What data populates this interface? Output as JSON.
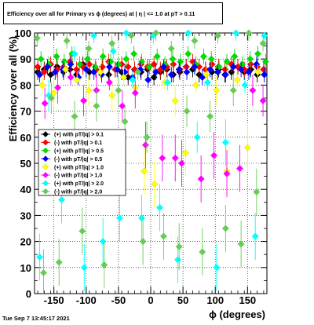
{
  "title": "Efficiency over all for Primary vs ϕ (degrees) at |  η | <= 1.0 at pT > 0.11",
  "timestamp": "Tue Sep  7 13:45:17 2021",
  "chart_data": {
    "type": "scatter",
    "xlabel": "ϕ (degrees)",
    "ylabel": "Efficiency over all (%)",
    "xlim": [
      -180,
      180
    ],
    "ylim": [
      0,
      100
    ],
    "xticks": [
      -150,
      -100,
      -50,
      0,
      50,
      100,
      150
    ],
    "yticks": [
      0,
      10,
      20,
      30,
      40,
      50,
      60,
      70,
      80,
      90,
      100
    ],
    "grid": true,
    "legend_position": "middle-left",
    "series": [
      {
        "name": "(+) with pT/|q| > 0.1",
        "color": "#000000",
        "x": [
          -175,
          -165,
          -155,
          -145,
          -135,
          -125,
          -115,
          -105,
          -95,
          -85,
          -75,
          -65,
          -55,
          -45,
          -35,
          -25,
          -15,
          -5,
          5,
          15,
          25,
          35,
          45,
          55,
          65,
          75,
          85,
          95,
          105,
          115,
          125,
          135,
          145,
          155,
          165,
          175
        ],
        "y": [
          85,
          86,
          84,
          87,
          85,
          86,
          84,
          88,
          85,
          86,
          87,
          84,
          86,
          85,
          83,
          86,
          85,
          86,
          83,
          85,
          86,
          84,
          85,
          87,
          86,
          84,
          86,
          85,
          86,
          84,
          85,
          87,
          85,
          86,
          84,
          86
        ]
      },
      {
        "name": "(-) with pT/|q| > 0.1",
        "color": "#ff0000",
        "x": [
          -175,
          -165,
          -155,
          -145,
          -135,
          -125,
          -115,
          -105,
          -95,
          -85,
          -75,
          -65,
          -55,
          -45,
          -35,
          -25,
          -15,
          -5,
          5,
          15,
          25,
          35,
          45,
          55,
          65,
          75,
          85,
          95,
          105,
          115,
          125,
          135,
          145,
          155,
          165,
          175
        ],
        "y": [
          87,
          85,
          88,
          86,
          87,
          89,
          86,
          87,
          88,
          86,
          87,
          89,
          86,
          88,
          87,
          86,
          88,
          87,
          88,
          86,
          87,
          88,
          86,
          87,
          89,
          87,
          86,
          88,
          87,
          86,
          88,
          87,
          86,
          88,
          87,
          86
        ]
      },
      {
        "name": "(+) with pT/|q| > 0.5",
        "color": "#00dd00",
        "x": [
          -170,
          -158,
          -146,
          -134,
          -122,
          -110,
          -98,
          -86,
          -74,
          -62,
          -50,
          -38,
          -26,
          -14,
          -2,
          10,
          22,
          34,
          46,
          58,
          70,
          82,
          94,
          106,
          118,
          130,
          142,
          154,
          166,
          178
        ],
        "y": [
          90,
          88,
          91,
          89,
          92,
          88,
          90,
          87,
          91,
          89,
          88,
          90,
          92,
          89,
          87,
          91,
          88,
          90,
          89,
          92,
          88,
          91,
          90,
          87,
          89,
          91,
          88,
          90,
          92,
          89
        ]
      },
      {
        "name": "(-) with pT/|q| > 0.5",
        "color": "#0000ff",
        "x": [
          -172,
          -160,
          -148,
          -136,
          -124,
          -112,
          -100,
          -88,
          -76,
          -64,
          -52,
          -40,
          -28,
          -16,
          -4,
          8,
          20,
          32,
          44,
          56,
          68,
          80,
          92,
          104,
          116,
          128,
          140,
          152,
          164,
          176
        ],
        "y": [
          84,
          87,
          85,
          86,
          88,
          83,
          86,
          85,
          84,
          87,
          86,
          85,
          83,
          86,
          82,
          85,
          87,
          84,
          86,
          85,
          87,
          83,
          86,
          85,
          84,
          87,
          86,
          85,
          88,
          84
        ]
      },
      {
        "name": "(+) with pT/|q| > 1.0",
        "color": "#ffff00",
        "x": [
          -168,
          -150,
          -132,
          -114,
          -96,
          -78,
          -60,
          -42,
          -24,
          -10,
          6,
          22,
          38,
          54,
          70,
          86,
          102,
          118,
          134,
          150,
          166
        ],
        "y": [
          80,
          77,
          86,
          82,
          78,
          85,
          76,
          83,
          79,
          47,
          42,
          81,
          74,
          54,
          80,
          84,
          78,
          47,
          82,
          56,
          85
        ]
      },
      {
        "name": "(-) with pT/|q| > 1.0",
        "color": "#ff00ff",
        "x": [
          -164,
          -144,
          -124,
          -104,
          -84,
          -64,
          -44,
          -24,
          -8,
          18,
          38,
          48,
          78,
          98,
          118,
          138,
          158,
          174
        ],
        "y": [
          73,
          79,
          83,
          74,
          78,
          81,
          72,
          77,
          57,
          52,
          52,
          50,
          44,
          53,
          46,
          48,
          78,
          74
        ]
      },
      {
        "name": "(+) with pT/|q| > 2.0",
        "color": "#00ffff",
        "x": [
          -172,
          -158,
          -138,
          -118,
          -103,
          -88,
          -74,
          -58,
          -48,
          -38,
          -28,
          -14,
          4,
          14,
          26,
          42,
          58,
          72,
          88,
          102,
          116,
          132,
          146,
          162,
          176
        ],
        "y": [
          14,
          76,
          36,
          92,
          10,
          99,
          20,
          93,
          29,
          100,
          82,
          29,
          99,
          33,
          81,
          13,
          100,
          60,
          81,
          10,
          58,
          100,
          80,
          22,
          99
        ]
      },
      {
        "name": "(-) with pT/|q| > 2.0",
        "color": "#66cc55",
        "x": [
          -176,
          -166,
          -154,
          -142,
          -130,
          -118,
          -106,
          -96,
          -84,
          -72,
          -60,
          -50,
          -40,
          -30,
          -20,
          -12,
          -6,
          8,
          20,
          32,
          44,
          56,
          68,
          80,
          92,
          104,
          116,
          128,
          140,
          152,
          164,
          174
        ],
        "y": [
          98,
          8,
          75,
          12,
          97,
          68,
          24,
          94,
          72,
          11,
          96,
          78,
          66,
          99,
          85,
          20,
          60,
          100,
          22,
          94,
          18,
          70,
          97,
          16,
          68,
          99,
          25,
          78,
          19,
          100,
          39,
          96
        ]
      }
    ]
  }
}
